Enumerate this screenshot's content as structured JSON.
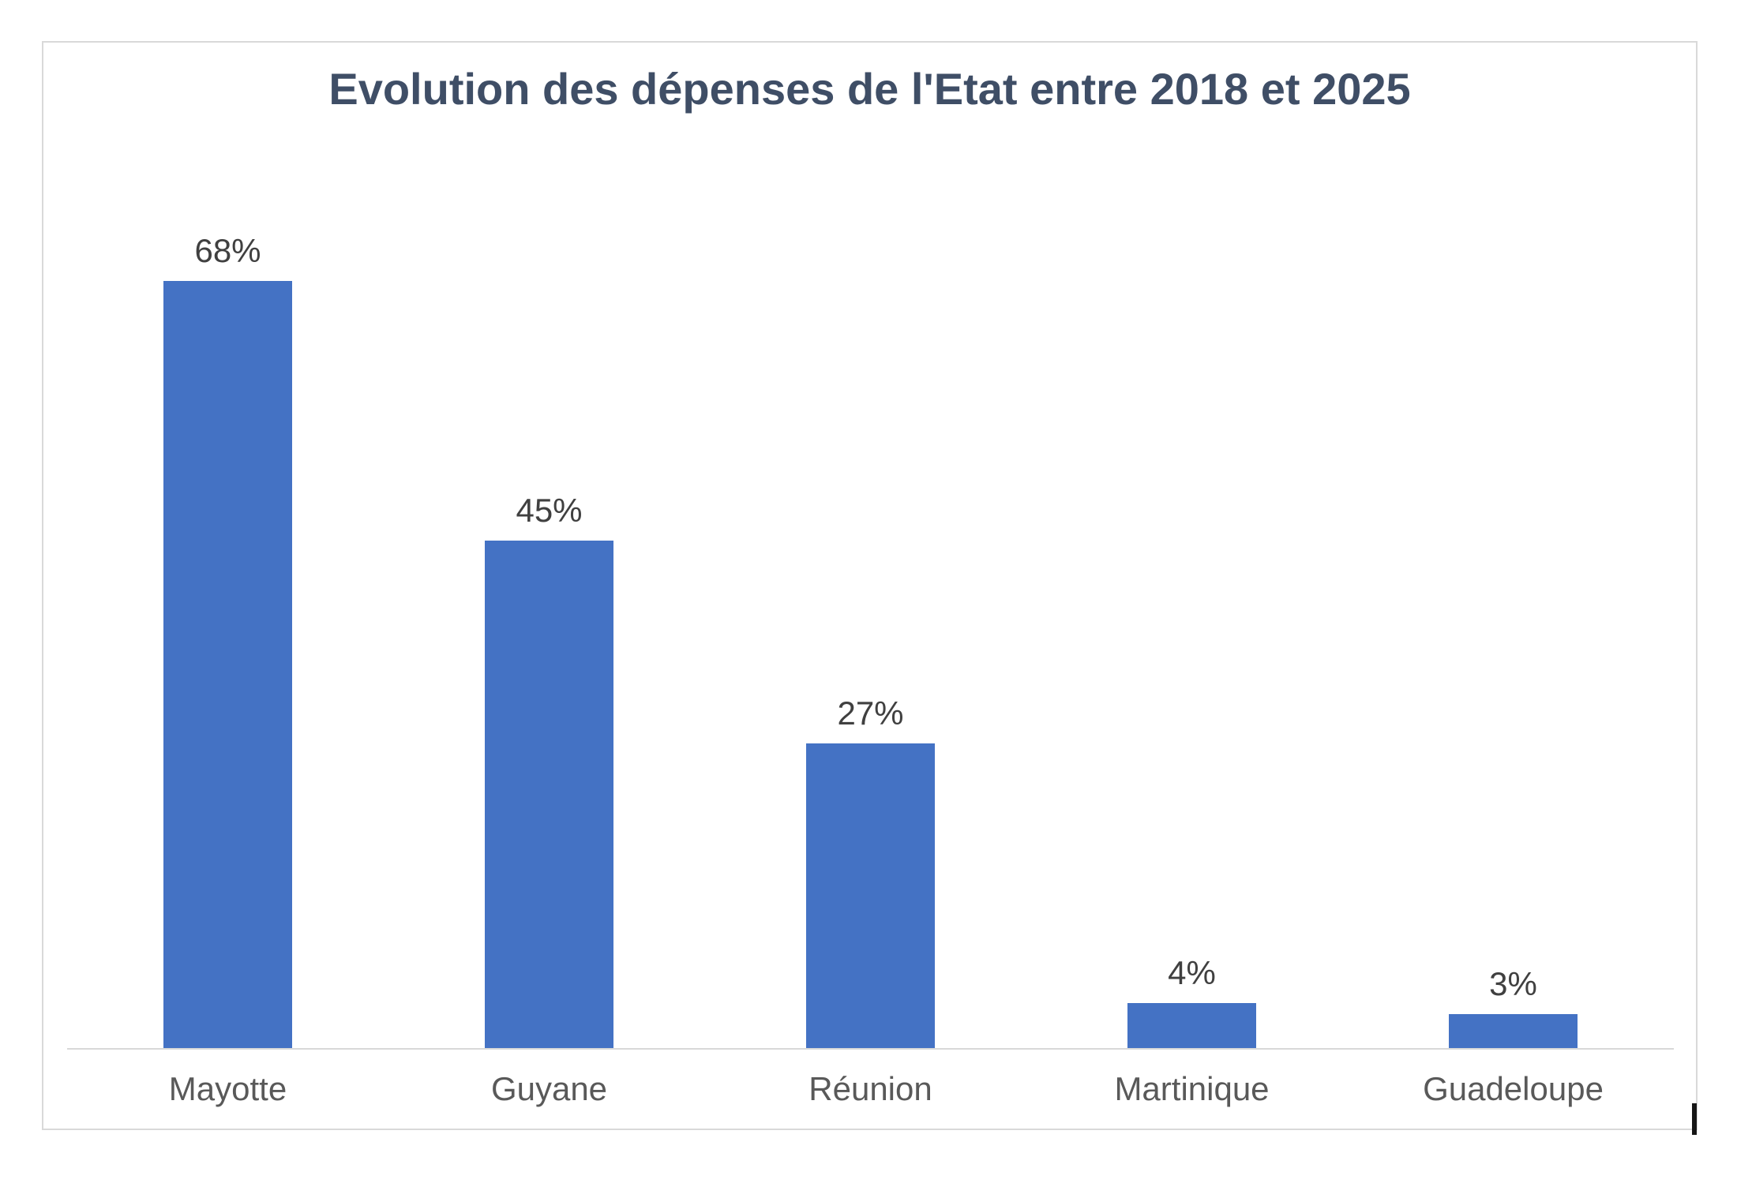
{
  "chart_data": {
    "type": "bar",
    "title": "Evolution des dépenses de l'Etat entre 2018 et 2025",
    "categories": [
      "Mayotte",
      "Guyane",
      "Réunion",
      "Martinique",
      "Guadeloupe"
    ],
    "values": [
      68,
      45,
      27,
      4,
      3
    ],
    "value_labels": [
      "68%",
      "45%",
      "27%",
      "4%",
      "3%"
    ],
    "xlabel": "",
    "ylabel": "",
    "ylim": [
      0,
      81
    ],
    "grid": false,
    "legend": false,
    "layout": {
      "data_labels_position": "above-bar",
      "axis_line": "bottom-only",
      "bar_gap": "150%"
    },
    "colors": {
      "bar": "#4472C4",
      "title": "#3F4E66",
      "data_label": "#404040",
      "category_label": "#595959",
      "axis_line": "#D9D9D9",
      "chart_border": "#D9D9D9",
      "background": "#FFFFFF"
    }
  },
  "artifacts": {
    "text_cursor_visible": true
  }
}
